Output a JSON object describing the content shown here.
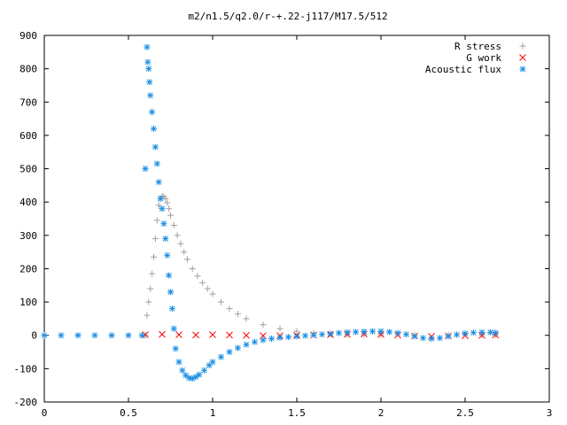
{
  "chart_data": {
    "type": "scatter",
    "title": "m2/n1.5/q2.0/r-+.22-j117/M17.5/512",
    "xlabel": "",
    "ylabel": "",
    "xlim": [
      0,
      3
    ],
    "ylim": [
      -200,
      900
    ],
    "x_ticks": [
      0,
      0.5,
      1,
      1.5,
      2,
      2.5,
      3
    ],
    "x_tick_labels": [
      "0",
      "0.5",
      "1",
      "1.5",
      "2",
      "2.5",
      "3"
    ],
    "y_ticks": [
      -200,
      -100,
      0,
      100,
      200,
      300,
      400,
      500,
      600,
      700,
      800,
      900
    ],
    "y_tick_labels": [
      "-200",
      "-100",
      "0",
      "100",
      "200",
      "300",
      "400",
      "500",
      "600",
      "700",
      "800",
      "900"
    ],
    "grid": false,
    "legend_position": "top-right",
    "series": [
      {
        "name": "R stress",
        "marker": "plus",
        "color": "#a0a0a0",
        "x": [
          0.0,
          0.2,
          0.4,
          0.6,
          0.61,
          0.62,
          0.63,
          0.64,
          0.65,
          0.66,
          0.67,
          0.68,
          0.69,
          0.7,
          0.71,
          0.72,
          0.73,
          0.74,
          0.75,
          0.77,
          0.79,
          0.81,
          0.83,
          0.85,
          0.88,
          0.91,
          0.94,
          0.97,
          1.0,
          1.05,
          1.1,
          1.15,
          1.2,
          1.3,
          1.4,
          1.5,
          1.6,
          1.7,
          1.8,
          1.9,
          2.0,
          2.2,
          2.4,
          2.6,
          2.68
        ],
        "y": [
          0,
          0,
          0,
          0,
          60,
          100,
          140,
          185,
          235,
          290,
          345,
          390,
          410,
          418,
          416,
          410,
          398,
          380,
          360,
          330,
          300,
          275,
          250,
          228,
          200,
          178,
          158,
          140,
          124,
          100,
          80,
          64,
          50,
          32,
          20,
          12,
          7,
          4,
          3,
          2,
          2,
          1,
          1,
          1,
          1
        ]
      },
      {
        "name": "G work",
        "marker": "cross",
        "color": "#ff0000",
        "x": [
          0.6,
          0.7,
          0.8,
          0.9,
          1.0,
          1.1,
          1.2,
          1.3,
          1.4,
          1.5,
          1.6,
          1.7,
          1.8,
          1.9,
          2.0,
          2.1,
          2.2,
          2.3,
          2.4,
          2.5,
          2.6,
          2.68
        ],
        "y": [
          2,
          3,
          2,
          1,
          2,
          1,
          0,
          -1,
          -1,
          0,
          1,
          2,
          3,
          4,
          3,
          1,
          -2,
          -3,
          -2,
          -1,
          0,
          1
        ]
      },
      {
        "name": "Acoustic flux",
        "marker": "star",
        "color": "#1a8fe3",
        "x": [
          0.0,
          0.1,
          0.2,
          0.3,
          0.4,
          0.5,
          0.58,
          0.6,
          0.61,
          0.615,
          0.62,
          0.625,
          0.63,
          0.64,
          0.65,
          0.66,
          0.67,
          0.68,
          0.69,
          0.7,
          0.71,
          0.72,
          0.73,
          0.74,
          0.75,
          0.76,
          0.77,
          0.78,
          0.8,
          0.82,
          0.84,
          0.86,
          0.88,
          0.9,
          0.92,
          0.95,
          0.98,
          1.0,
          1.05,
          1.1,
          1.15,
          1.2,
          1.25,
          1.3,
          1.35,
          1.4,
          1.45,
          1.5,
          1.55,
          1.6,
          1.65,
          1.7,
          1.75,
          1.8,
          1.85,
          1.9,
          1.95,
          2.0,
          2.05,
          2.1,
          2.15,
          2.2,
          2.25,
          2.3,
          2.35,
          2.4,
          2.45,
          2.5,
          2.55,
          2.6,
          2.65,
          2.68
        ],
        "y": [
          0,
          0,
          0,
          0,
          0,
          0,
          0,
          500,
          865,
          820,
          800,
          760,
          720,
          670,
          620,
          565,
          515,
          460,
          410,
          380,
          335,
          290,
          240,
          180,
          130,
          80,
          20,
          -40,
          -80,
          -105,
          -120,
          -128,
          -130,
          -125,
          -118,
          -105,
          -90,
          -80,
          -65,
          -50,
          -38,
          -28,
          -20,
          -14,
          -10,
          -7,
          -5,
          -3,
          -1,
          1,
          3,
          5,
          7,
          9,
          10,
          11,
          12,
          12,
          10,
          7,
          3,
          -3,
          -8,
          -10,
          -8,
          -3,
          2,
          6,
          8,
          9,
          9,
          8
        ]
      }
    ]
  }
}
